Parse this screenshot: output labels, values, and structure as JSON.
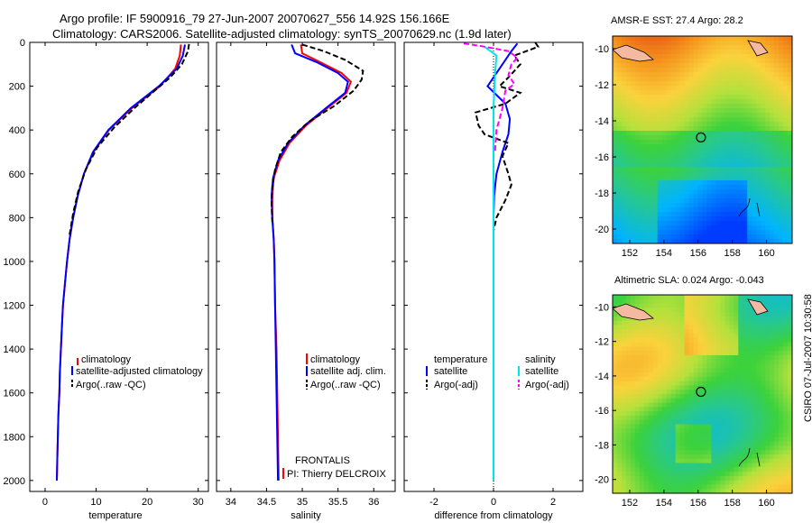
{
  "header": {
    "line1": "Argo profile: IF 5900916_79 27-Jun-2007 20070627_556 14.92S 156.166E",
    "line2": "Climatology: CARS2006. Satellite-adjusted climatology: synTS_20070629.nc (1.9d later)"
  },
  "side_stamp": "CSIRO 07-Jul-2007 10:30:58",
  "colors": {
    "climatology": "#ff0000",
    "satellite": "#0000ff",
    "argo": "#000000",
    "salinity_satellite": "#00e5e5",
    "salinity_argo": "#ff00ff"
  },
  "chart_data": [
    {
      "id": "temperature",
      "type": "line",
      "xlabel": "temperature",
      "ylabel": "",
      "xlim": [
        -3,
        32
      ],
      "ylim": [
        2050,
        0
      ],
      "xticks": [
        0,
        10,
        20,
        30
      ],
      "xtick_labels": [
        "0",
        "10",
        "20",
        "30"
      ],
      "yticks": [
        0,
        200,
        400,
        600,
        800,
        1000,
        1200,
        1400,
        1600,
        1800,
        2000
      ],
      "ytick_labels": [
        "0",
        "200",
        "400",
        "600",
        "800",
        "1000",
        "1200",
        "1400",
        "1600",
        "1800",
        "2000"
      ],
      "series": [
        {
          "name": "climatology",
          "color": "#ff0000",
          "dash": "",
          "width": 2,
          "points": [
            [
              26.6,
              10
            ],
            [
              26.4,
              60
            ],
            [
              25.5,
              120
            ],
            [
              22.5,
              200
            ],
            [
              17,
              300
            ],
            [
              12.5,
              400
            ],
            [
              9.5,
              500
            ],
            [
              7.6,
              600
            ],
            [
              6.4,
              700
            ],
            [
              5.5,
              800
            ],
            [
              4.8,
              900
            ],
            [
              4.3,
              1000
            ],
            [
              3.9,
              1100
            ],
            [
              3.5,
              1200
            ],
            [
              3.3,
              1300
            ],
            [
              3.1,
              1400
            ],
            [
              2.9,
              1500
            ],
            [
              2.8,
              1600
            ],
            [
              2.6,
              1700
            ],
            [
              2.5,
              1800
            ],
            [
              2.4,
              1900
            ],
            [
              2.3,
              2000
            ]
          ]
        },
        {
          "name": "satellite-adjusted climatology",
          "color": "#0000ff",
          "dash": "",
          "width": 2,
          "points": [
            [
              27.4,
              10
            ],
            [
              27.0,
              60
            ],
            [
              25.8,
              120
            ],
            [
              22.3,
              200
            ],
            [
              16.8,
              300
            ],
            [
              12.4,
              400
            ],
            [
              9.4,
              500
            ],
            [
              7.6,
              600
            ],
            [
              6.4,
              700
            ],
            [
              5.5,
              800
            ],
            [
              4.8,
              900
            ],
            [
              4.3,
              1000
            ],
            [
              3.9,
              1100
            ],
            [
              3.5,
              1200
            ],
            [
              3.3,
              1300
            ],
            [
              3.1,
              1400
            ],
            [
              2.9,
              1500
            ],
            [
              2.8,
              1600
            ],
            [
              2.6,
              1700
            ],
            [
              2.5,
              1800
            ],
            [
              2.4,
              1900
            ],
            [
              2.3,
              2000
            ]
          ]
        },
        {
          "name": "Argo(..raw -QC)",
          "color": "#000000",
          "dash": "6,3",
          "width": 2,
          "points": [
            [
              28.2,
              8
            ],
            [
              28.0,
              40
            ],
            [
              26.8,
              100
            ],
            [
              24.5,
              160
            ],
            [
              21.5,
              220
            ],
            [
              17.5,
              300
            ],
            [
              13.5,
              390
            ],
            [
              10.2,
              480
            ],
            [
              8.0,
              580
            ],
            [
              6.5,
              680
            ],
            [
              5.5,
              780
            ],
            [
              4.8,
              880
            ]
          ]
        }
      ],
      "legend": [
        "climatology",
        "satellite-adjusted climatology",
        "Argo(..raw -QC)"
      ]
    },
    {
      "id": "salinity",
      "type": "line",
      "xlabel": "salinity",
      "xlim": [
        33.8,
        36.3
      ],
      "ylim": [
        2050,
        0
      ],
      "xticks": [
        34,
        34.5,
        35,
        35.5,
        36
      ],
      "xtick_labels": [
        "34",
        "34.5",
        "35",
        "35.5",
        "36"
      ],
      "annotations": [
        "FRONTALIS",
        "PI: Thierry DELCROIX"
      ],
      "series": [
        {
          "name": "climatology",
          "color": "#ff0000",
          "dash": "",
          "width": 2,
          "points": [
            [
              34.98,
              10
            ],
            [
              35.0,
              50
            ],
            [
              35.25,
              90
            ],
            [
              35.55,
              140
            ],
            [
              35.68,
              180
            ],
            [
              35.62,
              230
            ],
            [
              35.35,
              300
            ],
            [
              35.05,
              380
            ],
            [
              34.82,
              460
            ],
            [
              34.68,
              540
            ],
            [
              34.6,
              620
            ],
            [
              34.58,
              700
            ],
            [
              34.58,
              800
            ],
            [
              34.6,
              900
            ],
            [
              34.61,
              1000
            ],
            [
              34.62,
              1200
            ],
            [
              34.64,
              1400
            ],
            [
              34.65,
              1600
            ],
            [
              34.66,
              1800
            ],
            [
              34.67,
              2000
            ]
          ]
        },
        {
          "name": "satellite adj. clim.",
          "color": "#0000ff",
          "dash": "",
          "width": 2,
          "points": [
            [
              34.85,
              10
            ],
            [
              34.9,
              50
            ],
            [
              35.2,
              90
            ],
            [
              35.5,
              140
            ],
            [
              35.64,
              180
            ],
            [
              35.6,
              230
            ],
            [
              35.33,
              300
            ],
            [
              35.03,
              380
            ],
            [
              34.8,
              460
            ],
            [
              34.66,
              540
            ],
            [
              34.59,
              620
            ],
            [
              34.57,
              700
            ],
            [
              34.58,
              800
            ],
            [
              34.6,
              900
            ],
            [
              34.61,
              1000
            ],
            [
              34.62,
              1200
            ],
            [
              34.63,
              1400
            ],
            [
              34.64,
              1600
            ],
            [
              34.65,
              1800
            ],
            [
              34.66,
              2000
            ]
          ]
        },
        {
          "name": "Argo(..raw -QC)",
          "color": "#000000",
          "dash": "6,3",
          "width": 2,
          "points": [
            [
              35.0,
              10
            ],
            [
              35.3,
              40
            ],
            [
              35.6,
              80
            ],
            [
              35.85,
              130
            ],
            [
              35.83,
              170
            ],
            [
              35.72,
              220
            ],
            [
              35.45,
              290
            ],
            [
              35.1,
              360
            ],
            [
              34.86,
              430
            ],
            [
              34.7,
              500
            ],
            [
              34.62,
              580
            ],
            [
              34.58,
              660
            ],
            [
              34.57,
              740
            ],
            [
              34.58,
              820
            ]
          ]
        }
      ],
      "legend": [
        "climatology",
        "satellite adj. clim.",
        "Argo(..raw -QC)"
      ]
    },
    {
      "id": "difference",
      "type": "line",
      "xlabel": "difference from climatology",
      "xlim": [
        -3,
        3
      ],
      "ylim": [
        2050,
        0
      ],
      "xticks": [
        -2,
        0,
        2
      ],
      "xtick_labels": [
        "-2",
        "0",
        "2"
      ],
      "legend_headers": [
        "temperature",
        "salinity"
      ],
      "series": [
        {
          "name": "temperature satellite",
          "color": "#0000ff",
          "dash": "",
          "width": 2,
          "points": [
            [
              0.8,
              5
            ],
            [
              0.6,
              40
            ],
            [
              0.3,
              100
            ],
            [
              -0.2,
              200
            ],
            [
              0.4,
              280
            ],
            [
              0.55,
              350
            ],
            [
              0.5,
              420
            ],
            [
              0.3,
              500
            ],
            [
              0.1,
              600
            ],
            [
              0.02,
              700
            ],
            [
              0.0,
              800
            ],
            [
              0.0,
              900
            ]
          ]
        },
        {
          "name": "temperature Argo(-adj)",
          "color": "#000000",
          "dash": "6,3",
          "width": 2,
          "points": [
            [
              1.4,
              0
            ],
            [
              1.5,
              20
            ],
            [
              0.7,
              60
            ],
            [
              0.9,
              100
            ],
            [
              0.5,
              160
            ],
            [
              0.2,
              200
            ],
            [
              0.9,
              230
            ],
            [
              0.4,
              280
            ],
            [
              -0.6,
              320
            ],
            [
              -0.5,
              380
            ],
            [
              -0.3,
              420
            ],
            [
              0.5,
              460
            ],
            [
              0.3,
              520
            ],
            [
              0.5,
              600
            ],
            [
              0.6,
              650
            ],
            [
              0.4,
              720
            ],
            [
              0.1,
              800
            ],
            [
              0.0,
              860
            ]
          ]
        },
        {
          "name": "salinity satellite",
          "color": "#00e5e5",
          "dash": "",
          "width": 2,
          "points": [
            [
              -0.3,
              20
            ],
            [
              0.1,
              60
            ],
            [
              0.05,
              150
            ],
            [
              0.0,
              300
            ],
            [
              0.0,
              600
            ],
            [
              0.0,
              900
            ],
            [
              0.0,
              1400
            ],
            [
              0.0,
              2000
            ]
          ]
        },
        {
          "name": "salinity Argo(-adj)",
          "color": "#ff00ff",
          "dash": "6,3",
          "width": 2,
          "points": [
            [
              -1.0,
              5
            ],
            [
              -0.5,
              15
            ],
            [
              0.5,
              40
            ],
            [
              0.8,
              70
            ],
            [
              0.6,
              100
            ],
            [
              0.5,
              150
            ],
            [
              0.7,
              190
            ],
            [
              0.4,
              220
            ],
            [
              0.3,
              300
            ],
            [
              0.1,
              400
            ],
            [
              0.05,
              500
            ]
          ]
        }
      ],
      "legend": [
        "satellite",
        "Argo(-adj)",
        "satellite",
        "Argo(-adj)"
      ]
    }
  ],
  "maps": [
    {
      "id": "sst-map",
      "title": "AMSR-E SST: 27.4 Argo: 28.2",
      "xticks": [
        "152",
        "154",
        "156",
        "158",
        "160"
      ],
      "yticks": [
        "-10",
        "-12",
        "-14",
        "-16",
        "-18",
        "-20"
      ],
      "xrange": [
        151,
        161.5
      ],
      "yrange": [
        -9.3,
        -20.8
      ],
      "argo_lon": 156.166,
      "argo_lat": -14.92
    },
    {
      "id": "sla-map",
      "title": "Altimetric SLA: 0.024 Argo: -0.043",
      "xticks": [
        "152",
        "154",
        "156",
        "158",
        "160"
      ],
      "yticks": [
        "-10",
        "-12",
        "-14",
        "-16",
        "-18",
        "-20"
      ],
      "xrange": [
        151,
        161.5
      ],
      "yrange": [
        -9.3,
        -20.8
      ],
      "argo_lon": 156.166,
      "argo_lat": -14.92
    }
  ]
}
